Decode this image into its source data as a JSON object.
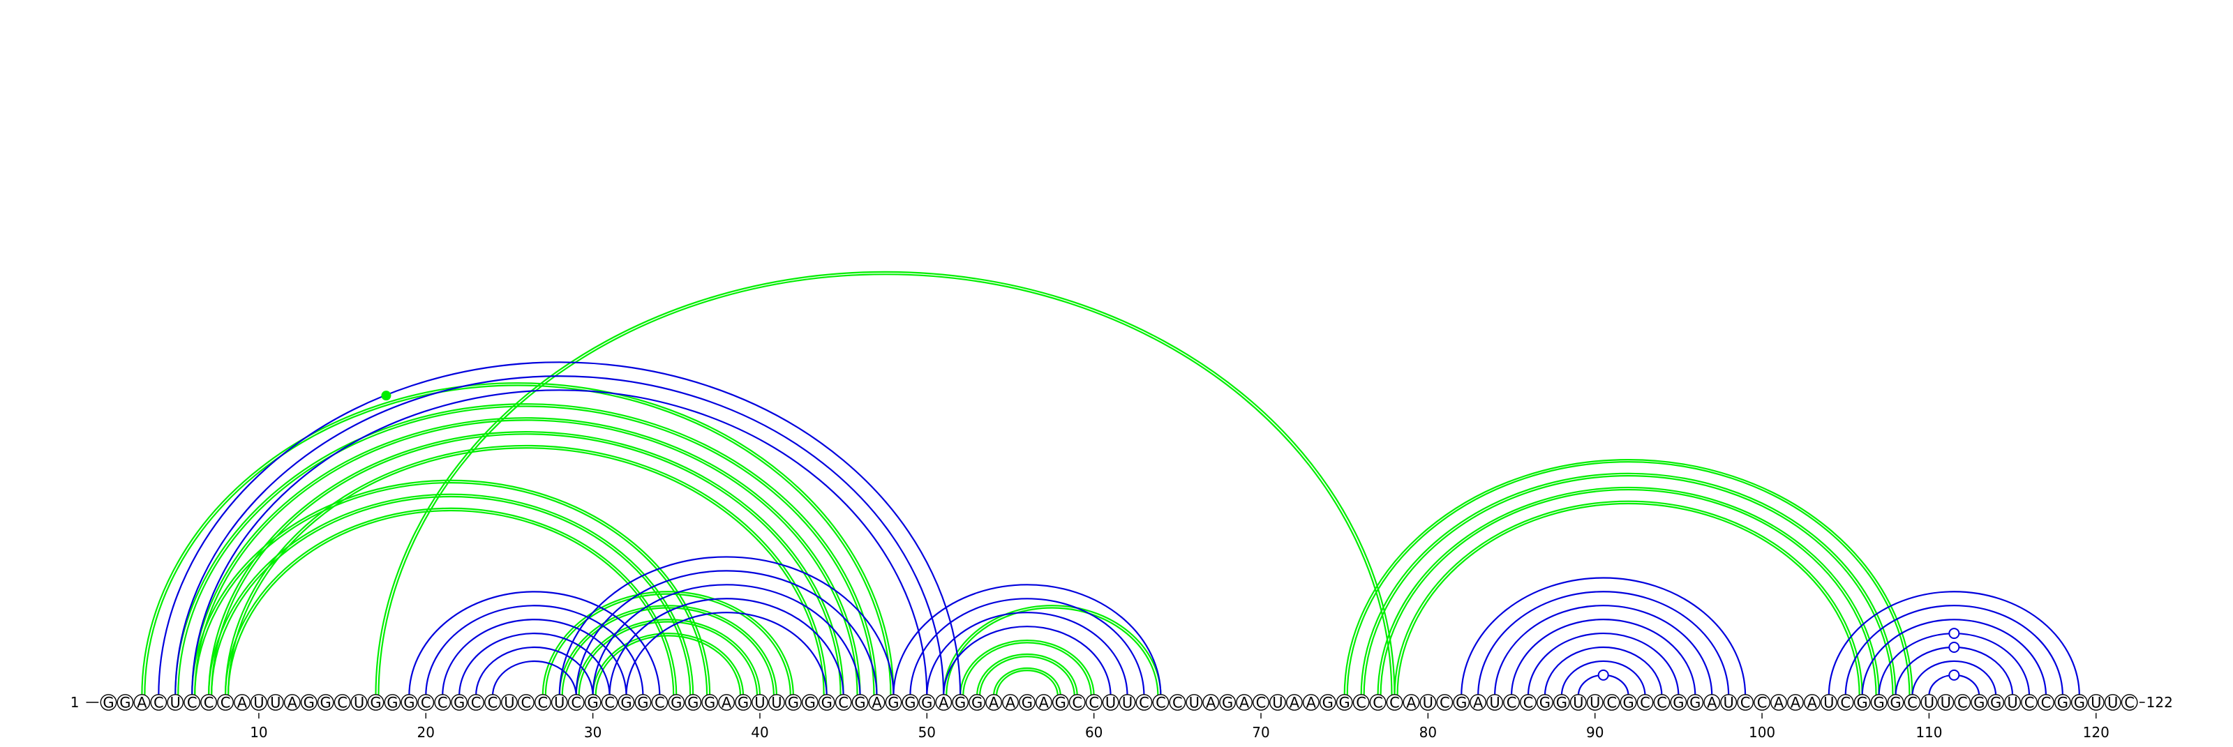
{
  "sequence": "GGACUCCCAUUAGGCUGGGCCGCCUCCUCGCGGCGGGAGUUGGGCGAGGGAGGAAGAGCCUUCCCUAGACUAAGGCCCAUCGAUCCGGUUCGCCGGAUCCAAAUCGGGCUUCGGUCCGGUUC",
  "start_label": "1",
  "end_label": "122",
  "ticks": [
    10,
    20,
    30,
    40,
    50,
    60,
    70,
    80,
    90,
    100,
    110,
    120
  ],
  "colors": {
    "blue": "#0000dd",
    "green": "#00ee00",
    "stroke": "#000000"
  },
  "blue_arcs": [
    [
      4,
      52
    ],
    [
      5,
      51
    ],
    [
      6,
      50
    ],
    [
      19,
      34
    ],
    [
      20,
      33
    ],
    [
      21,
      32
    ],
    [
      22,
      31
    ],
    [
      23,
      30
    ],
    [
      24,
      29
    ],
    [
      28,
      48
    ],
    [
      29,
      47
    ],
    [
      30,
      46
    ],
    [
      31,
      45
    ],
    [
      32,
      44
    ],
    [
      48,
      64
    ],
    [
      49,
      63
    ],
    [
      50,
      62
    ],
    [
      51,
      61
    ],
    [
      82,
      99
    ],
    [
      83,
      98
    ],
    [
      84,
      97
    ],
    [
      85,
      96
    ],
    [
      86,
      95
    ],
    [
      87,
      94
    ],
    [
      88,
      93
    ],
    [
      89,
      92
    ],
    [
      104,
      119
    ],
    [
      105,
      118
    ],
    [
      106,
      117
    ],
    [
      107,
      116
    ],
    [
      108,
      115
    ],
    [
      109,
      114
    ],
    [
      110,
      113
    ]
  ],
  "green_arcs": [
    [
      3,
      48
    ],
    [
      5,
      47
    ],
    [
      6,
      46
    ],
    [
      7,
      45
    ],
    [
      8,
      44
    ],
    [
      6,
      37
    ],
    [
      7,
      36
    ],
    [
      8,
      35
    ],
    [
      17,
      78
    ],
    [
      27,
      42
    ],
    [
      28,
      41
    ],
    [
      29,
      40
    ],
    [
      30,
      39
    ],
    [
      51,
      64
    ],
    [
      52,
      60
    ],
    [
      53,
      59
    ],
    [
      54,
      58
    ],
    [
      75,
      109
    ],
    [
      76,
      108
    ],
    [
      77,
      107
    ],
    [
      78,
      106
    ]
  ],
  "open_markers": [
    [
      110,
      113
    ],
    [
      108,
      115
    ],
    [
      107,
      116
    ],
    [
      89,
      92
    ]
  ],
  "filled_markers": [
    [
      3,
      48
    ]
  ]
}
